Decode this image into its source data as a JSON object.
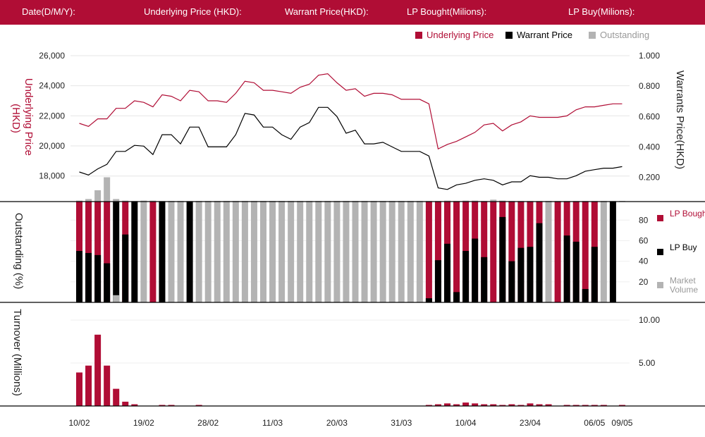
{
  "header": {
    "items": [
      {
        "label": "Date(D/M/Y):"
      },
      {
        "label": "Underlying Price (HKD):"
      },
      {
        "label": "Warrant  Price(HKD):"
      },
      {
        "label": "LP Bought(Milions):"
      },
      {
        "label": "LP Buy(Milions):"
      }
    ]
  },
  "colors": {
    "crimson": "#b00d35",
    "black": "#000000",
    "gray": "#b3b3b3",
    "header_bg": "#b00d35"
  },
  "chart_data": {
    "type": "composite",
    "x_tick_labels": [
      "10/02",
      "19/02",
      "28/02",
      "11/03",
      "20/03",
      "31/03",
      "10/04",
      "23/04",
      "06/05",
      "09/05"
    ],
    "x_tick_indices": [
      0,
      7,
      14,
      21,
      28,
      35,
      42,
      49,
      56,
      59
    ],
    "price_panel": {
      "legend": [
        "Underlying Price",
        "Warrant  Price",
        "Outstanding"
      ],
      "left_axis": {
        "label": "Underlying Price (HKD)",
        "ticks": [
          "26,000",
          "24,000",
          "22,000",
          "20,000",
          "18,000"
        ],
        "range": [
          16300,
          26000
        ]
      },
      "right_axis": {
        "label": "Warrants  Price(HKD)",
        "ticks": [
          "1.000",
          "0.800",
          "0.600",
          "0.400",
          "0.200"
        ],
        "range": [
          0.04,
          1.0
        ]
      },
      "underlying": [
        21500,
        21300,
        21800,
        21800,
        22500,
        22500,
        23000,
        22900,
        22600,
        23400,
        23300,
        23000,
        23700,
        23600,
        23000,
        23000,
        22900,
        23500,
        24300,
        24200,
        23700,
        23700,
        23600,
        23500,
        23900,
        24100,
        24700,
        24800,
        24200,
        23700,
        23800,
        23300,
        23500,
        23500,
        23400,
        23100,
        23100,
        23100,
        22800,
        19800,
        20100,
        20300,
        20600,
        20900,
        21400,
        21500,
        21000,
        21400,
        21600,
        22000,
        21900,
        21900,
        21900,
        22000,
        22400,
        22600,
        22600,
        22700,
        22800,
        22800
      ],
      "warrant": [
        0.235,
        0.215,
        0.255,
        0.285,
        0.37,
        0.37,
        0.41,
        0.405,
        0.35,
        0.48,
        0.48,
        0.42,
        0.53,
        0.53,
        0.4,
        0.4,
        0.4,
        0.48,
        0.62,
        0.61,
        0.53,
        0.53,
        0.48,
        0.45,
        0.53,
        0.56,
        0.66,
        0.66,
        0.6,
        0.49,
        0.51,
        0.42,
        0.42,
        0.43,
        0.4,
        0.37,
        0.37,
        0.37,
        0.34,
        0.13,
        0.12,
        0.15,
        0.16,
        0.18,
        0.19,
        0.18,
        0.15,
        0.17,
        0.17,
        0.21,
        0.2,
        0.2,
        0.19,
        0.19,
        0.21,
        0.24,
        0.25,
        0.26,
        0.26,
        0.27
      ]
    },
    "outstanding_panel": {
      "axis_label": "Outstanding (%)",
      "ticks": [
        "80",
        "60",
        "40",
        "20"
      ],
      "range": [
        0,
        98
      ],
      "legend": [
        "LP Bought",
        "LP Buy",
        "Market Volume"
      ],
      "outstanding_above_top": [
        3,
        8,
        35,
        75,
        8,
        3,
        2,
        3,
        3,
        2,
        2,
        2,
        2,
        2,
        2,
        2,
        2,
        2,
        2,
        2,
        2,
        2,
        2,
        2,
        2,
        2,
        2,
        2,
        2,
        2,
        2,
        2,
        2,
        2,
        2,
        2,
        2,
        2,
        2,
        2,
        3,
        2,
        3,
        3,
        2,
        6,
        3,
        2,
        2,
        2,
        2,
        2,
        2,
        2,
        2,
        2,
        2,
        2,
        2,
        2
      ],
      "bars": [
        {
          "kind": "lp",
          "bought": 98,
          "buy": 50
        },
        {
          "kind": "lp",
          "bought": 98,
          "buy": 48
        },
        {
          "kind": "lp",
          "bought": 98,
          "buy": 46
        },
        {
          "kind": "lp",
          "bought": 98,
          "buy": 38
        },
        {
          "kind": "buy",
          "value": 98,
          "gray_bottom": 7
        },
        {
          "kind": "lp",
          "bought": 98,
          "buy": 66
        },
        {
          "kind": "buy",
          "value": 98
        },
        {
          "kind": "gray",
          "value": 98
        },
        {
          "kind": "bought",
          "value": 98
        },
        {
          "kind": "buy",
          "value": 98
        },
        {
          "kind": "gray",
          "value": 98
        },
        {
          "kind": "gray",
          "value": 98
        },
        {
          "kind": "buy",
          "value": 98
        },
        {
          "kind": "gray",
          "value": 98
        },
        {
          "kind": "gray",
          "value": 98
        },
        {
          "kind": "gray",
          "value": 98
        },
        {
          "kind": "gray",
          "value": 98
        },
        {
          "kind": "gray",
          "value": 98
        },
        {
          "kind": "gray",
          "value": 98
        },
        {
          "kind": "gray",
          "value": 98
        },
        {
          "kind": "gray",
          "value": 98
        },
        {
          "kind": "gray",
          "value": 98
        },
        {
          "kind": "gray",
          "value": 98
        },
        {
          "kind": "gray",
          "value": 98
        },
        {
          "kind": "gray",
          "value": 98
        },
        {
          "kind": "gray",
          "value": 98
        },
        {
          "kind": "gray",
          "value": 98
        },
        {
          "kind": "gray",
          "value": 98
        },
        {
          "kind": "gray",
          "value": 98
        },
        {
          "kind": "gray",
          "value": 98
        },
        {
          "kind": "gray",
          "value": 98
        },
        {
          "kind": "gray",
          "value": 98
        },
        {
          "kind": "gray",
          "value": 98
        },
        {
          "kind": "gray",
          "value": 98
        },
        {
          "kind": "gray",
          "value": 98
        },
        {
          "kind": "gray",
          "value": 98
        },
        {
          "kind": "gray",
          "value": 98
        },
        {
          "kind": "gray",
          "value": 98
        },
        {
          "kind": "lp",
          "bought": 98,
          "buy": 4
        },
        {
          "kind": "lp",
          "bought": 98,
          "buy": 41
        },
        {
          "kind": "lp",
          "bought": 98,
          "buy": 57
        },
        {
          "kind": "lp",
          "bought": 98,
          "buy": 10
        },
        {
          "kind": "lp",
          "bought": 98,
          "buy": 50
        },
        {
          "kind": "lp",
          "bought": 98,
          "buy": 62
        },
        {
          "kind": "lp",
          "bought": 98,
          "buy": 44
        },
        {
          "kind": "bought",
          "value": 98
        },
        {
          "kind": "lp",
          "bought": 98,
          "buy": 83
        },
        {
          "kind": "lp",
          "bought": 98,
          "buy": 40
        },
        {
          "kind": "lp",
          "bought": 98,
          "buy": 53
        },
        {
          "kind": "lp",
          "bought": 98,
          "buy": 54
        },
        {
          "kind": "lp",
          "bought": 98,
          "buy": 77
        },
        {
          "kind": "gray",
          "value": 98
        },
        {
          "kind": "bought",
          "value": 98
        },
        {
          "kind": "lp",
          "bought": 98,
          "buy": 65
        },
        {
          "kind": "lp",
          "bought": 98,
          "buy": 59
        },
        {
          "kind": "lp",
          "bought": 98,
          "buy": 13
        },
        {
          "kind": "lp",
          "bought": 98,
          "buy": 54
        },
        {
          "kind": "gray",
          "value": 98
        },
        {
          "kind": "buy",
          "value": 98
        }
      ]
    },
    "turnover_panel": {
      "axis_label": "Turnover (Millions)",
      "ticks": [
        "10.00",
        "5.00"
      ],
      "range": [
        0,
        10.5
      ],
      "values": [
        3.9,
        4.7,
        8.3,
        4.7,
        2.0,
        0.5,
        0.2,
        0,
        0,
        0.1,
        0.1,
        0,
        0,
        0.1,
        0,
        0,
        0,
        0,
        0,
        0,
        0,
        0,
        0,
        0,
        0,
        0,
        0,
        0,
        0,
        0,
        0,
        0,
        0,
        0,
        0,
        0,
        0,
        0,
        0.1,
        0.2,
        0.3,
        0.2,
        0.4,
        0.3,
        0.2,
        0.2,
        0.1,
        0.2,
        0.1,
        0.3,
        0.2,
        0.2,
        0,
        0.1,
        0.1,
        0.1,
        0.1,
        0.1,
        0,
        0.1
      ]
    }
  }
}
